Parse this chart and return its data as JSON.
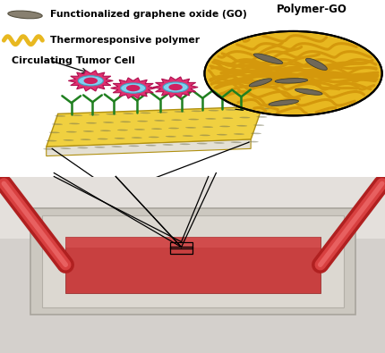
{
  "fig_width": 4.31,
  "fig_height": 3.95,
  "dpi": 100,
  "bg_color": "#ffffff",
  "legend": {
    "go_label": "Functionalized graphene oxide (GO)",
    "polymer_label": "Thermoresponsive polymer",
    "go_color": "#888070",
    "polymer_color": "#e8b820"
  },
  "inset_label": "Polymer-GO",
  "cell_label": "Circulating Tumor Cell",
  "substrate_color": "#f0d040",
  "substrate_edge": "#c0a010",
  "substrate_side_color": "#c8a800",
  "antibody_color": "#208020",
  "cell_body_color": "#e03070",
  "cell_center_color": "#80d0f0",
  "inset_bg": "#e8b820",
  "inset_network_color": "#d4980c",
  "inset_go_color": "#706858",
  "photo_bg_top": "#e0dcd8",
  "photo_bg_bot": "#c8c4be",
  "chip_clear_color": "#d8d4cc",
  "chip_fluid_color": "#c84040",
  "chip_border_color": "#b0a898",
  "tubing_color_dark": "#b02020",
  "tubing_color_light": "#e06060",
  "small_rect_color": "#000000",
  "funnel_line_color": "#000000"
}
